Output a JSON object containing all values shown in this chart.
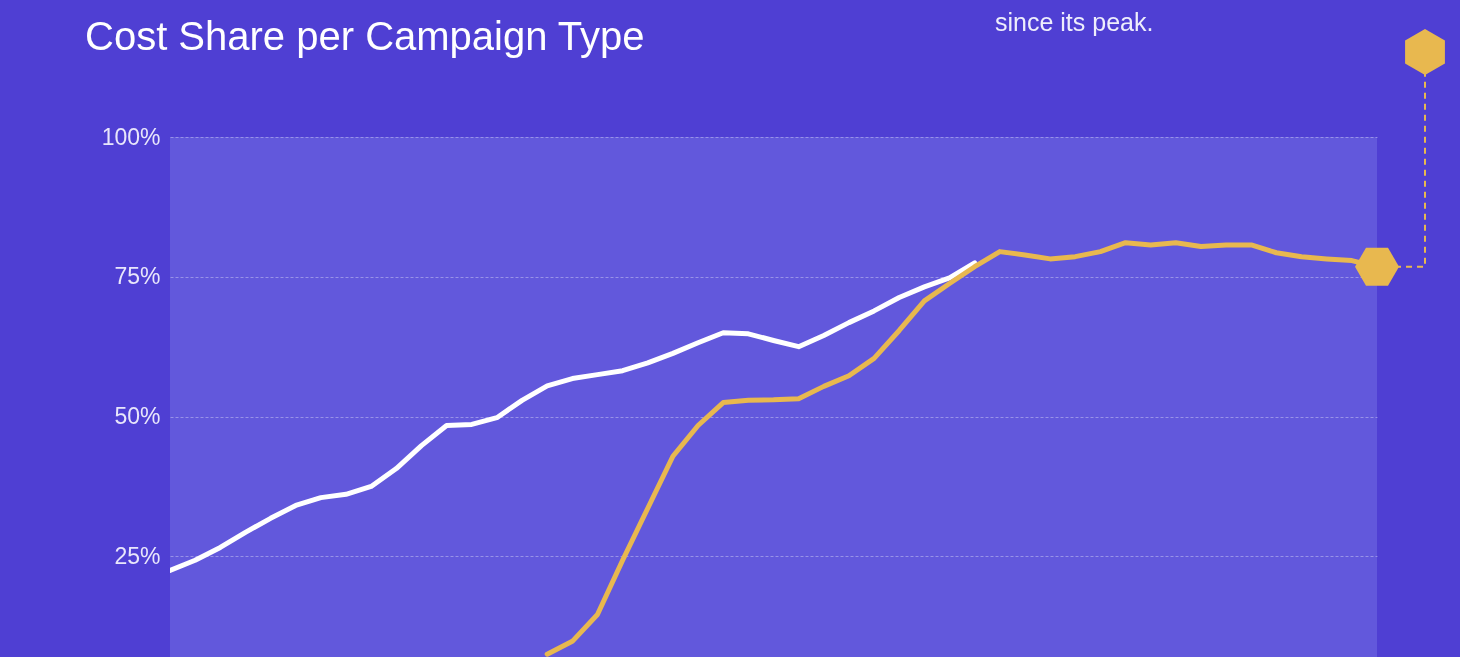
{
  "chart_data": {
    "type": "line",
    "title": "Cost Share per Campaign Type",
    "annotations": [
      "since its peak."
    ],
    "categories": [
      null,
      null,
      null,
      null,
      null,
      null,
      null,
      null,
      null,
      null,
      null,
      null,
      null,
      null,
      null,
      null,
      null,
      null,
      null,
      null,
      null,
      null,
      null,
      null,
      null,
      null,
      null,
      null,
      null,
      null,
      null,
      null,
      null,
      null,
      null,
      null,
      null,
      null,
      null,
      null,
      null,
      null,
      null,
      null,
      null,
      null,
      null,
      null,
      null
    ],
    "ylim": [
      7,
      100
    ],
    "yticks": [
      {
        "value": 25,
        "label": "25%"
      },
      {
        "value": 50,
        "label": "50%"
      },
      {
        "value": 75,
        "label": "75%"
      },
      {
        "value": 100,
        "label": "100%"
      }
    ],
    "grid": "y",
    "tick_labels": "y",
    "series": [
      {
        "color": "#ffffff",
        "values": [
          22.5,
          24.3,
          26.6,
          29.3,
          31.8,
          34.1,
          35.5,
          36.1,
          37.5,
          40.7,
          44.8,
          48.4,
          48.6,
          49.8,
          52.9,
          55.5,
          56.8,
          57.5,
          58.2,
          59.6,
          61.3,
          63.2,
          65,
          64.8,
          63.6,
          62.5,
          64.5,
          66.8,
          68.9,
          71.3,
          73.2,
          74.8,
          77.5,
          null,
          null,
          null,
          null,
          null,
          null,
          null,
          null,
          null,
          null,
          null,
          null,
          null,
          null,
          null,
          null
        ]
      },
      {
        "color": "#e8b84f",
        "values": [
          null,
          null,
          null,
          null,
          null,
          null,
          null,
          null,
          null,
          null,
          null,
          null,
          null,
          null,
          null,
          7.5,
          9.8,
          14.6,
          24.3,
          33.6,
          42.9,
          48.4,
          52.5,
          52.9,
          53,
          53.2,
          55.4,
          57.3,
          60.4,
          65.4,
          70.7,
          73.8,
          76.8,
          79.5,
          78.9,
          78.2,
          78.6,
          79.5,
          81.1,
          80.7,
          81.1,
          80.4,
          80.7,
          80.7,
          79.3,
          78.6,
          78.2,
          77.9,
          76.8
        ]
      }
    ]
  }
}
